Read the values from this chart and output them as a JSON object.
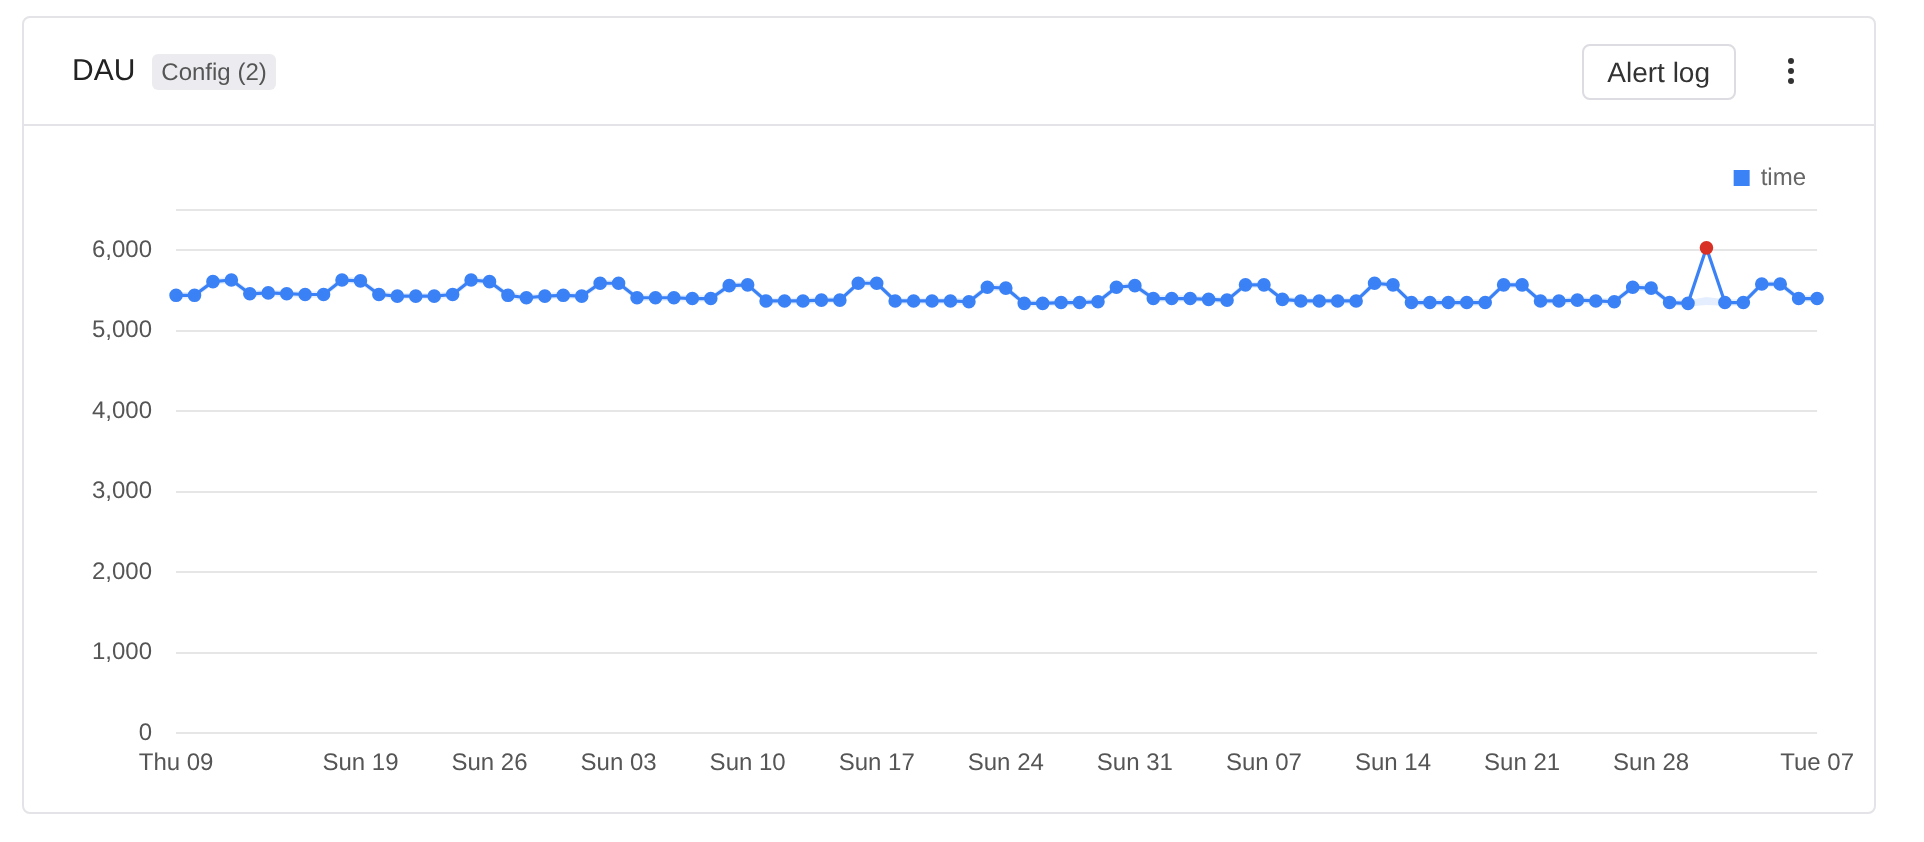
{
  "chart_data": {
    "type": "line",
    "title": "DAU",
    "annotations": [
      "Config (2)",
      "Alert log"
    ],
    "categories": [
      "Thu 09",
      null,
      null,
      null,
      null,
      null,
      null,
      null,
      null,
      null,
      "Sun 19",
      null,
      null,
      null,
      null,
      null,
      null,
      "Sun 26",
      null,
      null,
      null,
      null,
      null,
      null,
      "Sun 03",
      null,
      null,
      null,
      null,
      null,
      null,
      "Sun 10",
      null,
      null,
      null,
      null,
      null,
      null,
      "Sun 17",
      null,
      null,
      null,
      null,
      null,
      null,
      "Sun 24",
      null,
      null,
      null,
      null,
      null,
      null,
      "Sun 31",
      null,
      null,
      null,
      null,
      null,
      null,
      "Sun 07",
      null,
      null,
      null,
      null,
      null,
      null,
      "Sun 14",
      null,
      null,
      null,
      null,
      null,
      null,
      "Sun 21",
      null,
      null,
      null,
      null,
      null,
      null,
      "Sun 28",
      null,
      null,
      null,
      null,
      null,
      null,
      null,
      null,
      "Tue 07"
    ],
    "series": [
      {
        "name": "time",
        "color": "#3b82f6",
        "marker": "circle",
        "colors": [
          "#3b82f6",
          "#3b82f6",
          "#3b82f6",
          "#3b82f6",
          "#3b82f6",
          "#3b82f6",
          "#3b82f6",
          "#3b82f6",
          "#3b82f6",
          "#3b82f6",
          "#3b82f6",
          "#3b82f6",
          "#3b82f6",
          "#3b82f6",
          "#3b82f6",
          "#3b82f6",
          "#3b82f6",
          "#3b82f6",
          "#3b82f6",
          "#3b82f6",
          "#3b82f6",
          "#3b82f6",
          "#3b82f6",
          "#3b82f6",
          "#3b82f6",
          "#3b82f6",
          "#3b82f6",
          "#3b82f6",
          "#3b82f6",
          "#3b82f6",
          "#3b82f6",
          "#3b82f6",
          "#3b82f6",
          "#3b82f6",
          "#3b82f6",
          "#3b82f6",
          "#3b82f6",
          "#3b82f6",
          "#3b82f6",
          "#3b82f6",
          "#3b82f6",
          "#3b82f6",
          "#3b82f6",
          "#3b82f6",
          "#3b82f6",
          "#3b82f6",
          "#3b82f6",
          "#3b82f6",
          "#3b82f6",
          "#3b82f6",
          "#3b82f6",
          "#3b82f6",
          "#3b82f6",
          "#3b82f6",
          "#3b82f6",
          "#3b82f6",
          "#3b82f6",
          "#3b82f6",
          "#3b82f6",
          "#3b82f6",
          "#3b82f6",
          "#3b82f6",
          "#3b82f6",
          "#3b82f6",
          "#3b82f6",
          "#3b82f6",
          "#3b82f6",
          "#3b82f6",
          "#3b82f6",
          "#3b82f6",
          "#3b82f6",
          "#3b82f6",
          "#3b82f6",
          "#3b82f6",
          "#3b82f6",
          "#3b82f6",
          "#3b82f6",
          "#3b82f6",
          "#3b82f6",
          "#3b82f6",
          "#3b82f6",
          "#3b82f6",
          "#3b82f6",
          "#d93025",
          "#3b82f6",
          "#3b82f6",
          "#3b82f6",
          "#3b82f6",
          "#3b82f6",
          "#3b82f6"
        ],
        "values": [
          5440,
          5440,
          5610,
          5630,
          5460,
          5470,
          5460,
          5450,
          5450,
          5630,
          5620,
          5450,
          5430,
          5430,
          5430,
          5450,
          5630,
          5610,
          5440,
          5410,
          5430,
          5440,
          5430,
          5590,
          5590,
          5410,
          5410,
          5410,
          5400,
          5400,
          5560,
          5570,
          5370,
          5370,
          5370,
          5380,
          5380,
          5590,
          5590,
          5370,
          5370,
          5370,
          5370,
          5360,
          5540,
          5530,
          5340,
          5340,
          5350,
          5350,
          5360,
          5540,
          5560,
          5400,
          5400,
          5400,
          5390,
          5380,
          5570,
          5570,
          5390,
          5370,
          5370,
          5370,
          5370,
          5590,
          5570,
          5350,
          5350,
          5350,
          5350,
          5350,
          5570,
          5570,
          5370,
          5370,
          5380,
          5370,
          5360,
          5540,
          5530,
          5350,
          5340,
          6030,
          5350,
          5350,
          5580,
          5580,
          5400,
          5400
        ],
        "lower": [
          5400,
          5400,
          5570,
          5590,
          5420,
          5430,
          5420,
          5410,
          5410,
          5590,
          5580,
          5410,
          5390,
          5390,
          5390,
          5410,
          5590,
          5570,
          5400,
          5370,
          5390,
          5400,
          5390,
          5550,
          5550,
          5370,
          5370,
          5370,
          5360,
          5360,
          5520,
          5530,
          5330,
          5330,
          5330,
          5340,
          5340,
          5550,
          5550,
          5330,
          5330,
          5330,
          5330,
          5320,
          5500,
          5490,
          5300,
          5300,
          5310,
          5310,
          5320,
          5500,
          5520,
          5360,
          5360,
          5360,
          5350,
          5340,
          5530,
          5530,
          5350,
          5330,
          5330,
          5330,
          5330,
          5550,
          5530,
          5310,
          5310,
          5310,
          5310,
          5310,
          5530,
          5530,
          5330,
          5330,
          5340,
          5330,
          5320,
          5500,
          5490,
          5310,
          5300,
          5320,
          5310,
          5310,
          5540,
          5540,
          5360,
          5360
        ],
        "upper": [
          5480,
          5480,
          5650,
          5670,
          5500,
          5510,
          5500,
          5490,
          5490,
          5670,
          5660,
          5490,
          5470,
          5470,
          5470,
          5490,
          5670,
          5650,
          5480,
          5450,
          5470,
          5480,
          5470,
          5630,
          5630,
          5450,
          5450,
          5450,
          5440,
          5440,
          5600,
          5610,
          5410,
          5410,
          5410,
          5420,
          5420,
          5630,
          5630,
          5410,
          5410,
          5410,
          5410,
          5400,
          5580,
          5570,
          5380,
          5380,
          5390,
          5390,
          5400,
          5580,
          5600,
          5440,
          5440,
          5440,
          5430,
          5420,
          5610,
          5610,
          5430,
          5410,
          5410,
          5410,
          5410,
          5630,
          5610,
          5390,
          5390,
          5390,
          5390,
          5390,
          5610,
          5610,
          5410,
          5410,
          5420,
          5410,
          5400,
          5580,
          5570,
          5390,
          5380,
          5420,
          5390,
          5390,
          5620,
          5620,
          5440,
          5440
        ]
      }
    ],
    "ylim": [
      0,
      6500
    ],
    "yticks": [
      {
        "value": 0,
        "label": "0"
      },
      {
        "value": 1000,
        "label": "1,000"
      },
      {
        "value": 2000,
        "label": "2,000"
      },
      {
        "value": 3000,
        "label": "3,000"
      },
      {
        "value": 4000,
        "label": "4,000"
      },
      {
        "value": 5000,
        "label": "5,000"
      },
      {
        "value": 6000,
        "label": "6,000"
      },
      {
        "value": 6500,
        "label": null
      }
    ],
    "grid": "y",
    "legend": "top right"
  }
}
